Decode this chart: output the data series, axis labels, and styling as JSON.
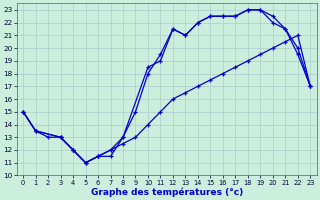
{
  "xlabel": "Graphe des températures (°c)",
  "bg_color": "#cceedd",
  "grid_color": "#aacccc",
  "line_color": "#0000cc",
  "xlim": [
    -0.5,
    23.5
  ],
  "ylim": [
    10,
    23.5
  ],
  "xticks": [
    0,
    1,
    2,
    3,
    4,
    5,
    6,
    7,
    8,
    9,
    10,
    11,
    12,
    13,
    14,
    15,
    16,
    17,
    18,
    19,
    20,
    21,
    22,
    23
  ],
  "yticks": [
    10,
    11,
    12,
    13,
    14,
    15,
    16,
    17,
    18,
    19,
    20,
    21,
    22,
    23
  ],
  "curve1_x": [
    0,
    1,
    2,
    3,
    4,
    5,
    6,
    7,
    8,
    9,
    10,
    11,
    12,
    13,
    14,
    15,
    16,
    17,
    18,
    19,
    20,
    21,
    22,
    23
  ],
  "curve1_y": [
    15,
    13.5,
    13,
    13,
    12,
    11,
    11.5,
    12,
    12.5,
    13,
    14,
    15,
    16,
    16.5,
    17,
    17.5,
    18,
    18.5,
    19,
    19.5,
    20,
    20.5,
    21,
    17
  ],
  "curve2_x": [
    0,
    1,
    3,
    4,
    5,
    6,
    7,
    8,
    9,
    10,
    11,
    12,
    13,
    14,
    15,
    16,
    17,
    18,
    19,
    20,
    21,
    22,
    23
  ],
  "curve2_y": [
    15,
    13.5,
    13,
    12,
    11,
    11.5,
    11.5,
    13,
    15,
    18,
    19.5,
    21.5,
    21,
    22,
    22.5,
    22.5,
    22.5,
    23,
    23,
    22.5,
    21.5,
    20,
    17
  ],
  "curve3_x": [
    0,
    1,
    3,
    4,
    5,
    6,
    7,
    8,
    10,
    11,
    12,
    13,
    14,
    15,
    16,
    17,
    18,
    19,
    20,
    21,
    22,
    23
  ],
  "curve3_y": [
    15,
    13.5,
    13,
    12,
    11,
    11.5,
    12,
    13,
    18.5,
    19,
    21.5,
    21,
    22,
    22.5,
    22.5,
    22.5,
    23,
    23,
    22,
    21.5,
    19.5,
    17
  ]
}
